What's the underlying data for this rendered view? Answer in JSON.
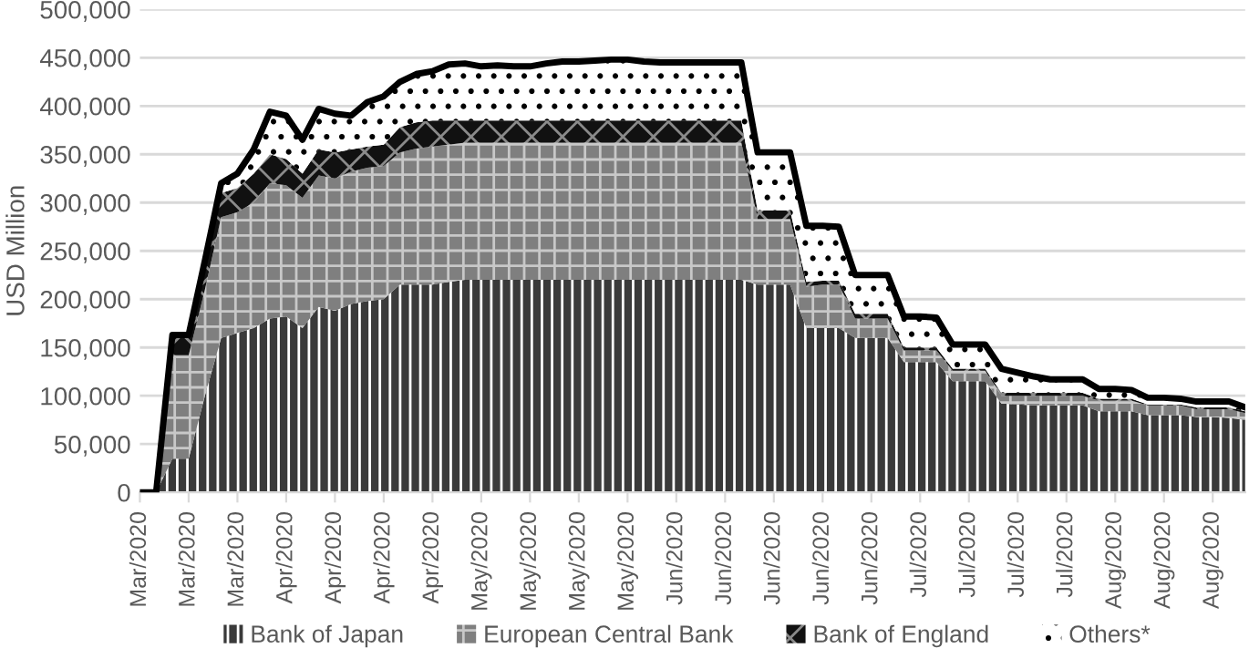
{
  "chart_data": {
    "type": "area",
    "stacked": true,
    "ylabel": "USD Million",
    "categories": [
      "Mar/2020",
      null,
      null,
      "Mar/2020",
      null,
      null,
      "Mar/2020",
      null,
      null,
      "Apr/2020",
      null,
      null,
      "Apr/2020",
      null,
      null,
      "Apr/2020",
      null,
      null,
      "Apr/2020",
      null,
      null,
      "May/2020",
      null,
      null,
      "May/2020",
      null,
      null,
      "May/2020",
      null,
      null,
      "May/2020",
      null,
      null,
      "Jun/2020",
      null,
      null,
      "Jun/2020",
      null,
      null,
      "Jun/2020",
      null,
      null,
      "Jun/2020",
      null,
      null,
      "Jun/2020",
      null,
      null,
      "Jul/2020",
      null,
      null,
      "Jul/2020",
      null,
      null,
      "Jul/2020",
      null,
      null,
      "Jul/2020",
      null,
      null,
      "Aug/2020",
      null,
      null,
      "Aug/2020",
      null,
      null,
      "Aug/2020",
      null,
      null
    ],
    "series": [
      {
        "name": "Bank of Japan",
        "color": "#3a3a3a",
        "values": [
          0,
          0,
          35000,
          35000,
          100000,
          160000,
          165000,
          170000,
          180000,
          182000,
          170000,
          192000,
          188000,
          195000,
          198000,
          200000,
          215000,
          215000,
          215000,
          218000,
          220000,
          220000,
          220000,
          220000,
          220000,
          220000,
          220000,
          220000,
          220000,
          220000,
          220000,
          220000,
          220000,
          220000,
          220000,
          220000,
          220000,
          220000,
          215000,
          215000,
          215000,
          170000,
          170000,
          170000,
          160000,
          160000,
          160000,
          135000,
          135000,
          135000,
          115000,
          115000,
          115000,
          92000,
          91000,
          90000,
          90000,
          90000,
          90000,
          84000,
          84000,
          84000,
          80000,
          80000,
          80000,
          78000,
          78000,
          77000,
          75000
        ]
      },
      {
        "name": "European Central Bank",
        "color": "#7f7f7f",
        "values": [
          0,
          0,
          107000,
          107000,
          110000,
          125000,
          125000,
          130000,
          140000,
          136000,
          135000,
          136000,
          137000,
          137000,
          138000,
          138000,
          137000,
          141000,
          143000,
          142000,
          142000,
          142000,
          142000,
          142000,
          142000,
          142000,
          142000,
          142000,
          142000,
          142000,
          142000,
          142000,
          142000,
          142000,
          142000,
          142000,
          142000,
          142000,
          68000,
          68000,
          68000,
          43000,
          45000,
          45000,
          20000,
          20000,
          20000,
          12000,
          12000,
          12000,
          11000,
          11000,
          11000,
          8000,
          9000,
          10000,
          10000,
          10000,
          10000,
          11000,
          11000,
          11000,
          10000,
          10000,
          10000,
          8000,
          8000,
          9000,
          7000
        ]
      },
      {
        "name": "Bank of England",
        "color": "#111111",
        "values": [
          0,
          0,
          18000,
          18000,
          25000,
          25000,
          25000,
          30000,
          30000,
          27000,
          25000,
          27000,
          27000,
          23000,
          22000,
          22000,
          26000,
          27000,
          27000,
          25000,
          23000,
          23000,
          23000,
          23000,
          23000,
          23000,
          23000,
          23000,
          23000,
          23000,
          23000,
          23000,
          23000,
          23000,
          23000,
          23000,
          23000,
          23000,
          9000,
          9000,
          9000,
          5000,
          4000,
          4000,
          5000,
          5000,
          5000,
          3000,
          3000,
          3000,
          2000,
          2000,
          2000,
          3000,
          3000,
          3000,
          3000,
          3000,
          3000,
          2000,
          2000,
          2000,
          1000,
          1000,
          1000,
          2000,
          2000,
          2000,
          2000
        ]
      },
      {
        "name": "Others*",
        "color": "#ffffff",
        "values": [
          0,
          0,
          3000,
          3000,
          5000,
          10000,
          15000,
          25000,
          44000,
          45000,
          35000,
          42000,
          40000,
          35000,
          46000,
          50000,
          47000,
          50000,
          51000,
          58000,
          59000,
          56000,
          57000,
          56000,
          56000,
          59000,
          61000,
          61000,
          62000,
          63000,
          63000,
          61000,
          60000,
          60000,
          60000,
          60000,
          60000,
          60000,
          60000,
          60000,
          60000,
          58000,
          57000,
          56000,
          40000,
          40000,
          40000,
          32000,
          32000,
          31000,
          25000,
          25000,
          25000,
          25000,
          21000,
          17000,
          14000,
          14000,
          14000,
          10000,
          10000,
          9000,
          7000,
          7000,
          6000,
          6000,
          6000,
          6000,
          4000
        ]
      }
    ],
    "ylim": [
      0,
      500000
    ],
    "yticks": [
      0,
      {
        "value": 50000,
        "label": "50,000"
      },
      {
        "value": 100000,
        "label": "100,000"
      },
      {
        "value": 150000,
        "label": "150,000"
      },
      {
        "value": 200000,
        "label": "200,000"
      },
      {
        "value": 250000,
        "label": "250,000"
      },
      {
        "value": 300000,
        "label": "300,000"
      },
      {
        "value": 350000,
        "label": "350,000"
      },
      {
        "value": 400000,
        "label": "400,000"
      },
      {
        "value": 450000,
        "label": "450,000"
      },
      {
        "value": 500000,
        "label": "500,000"
      }
    ],
    "grid": "y",
    "legend": "bottom"
  }
}
